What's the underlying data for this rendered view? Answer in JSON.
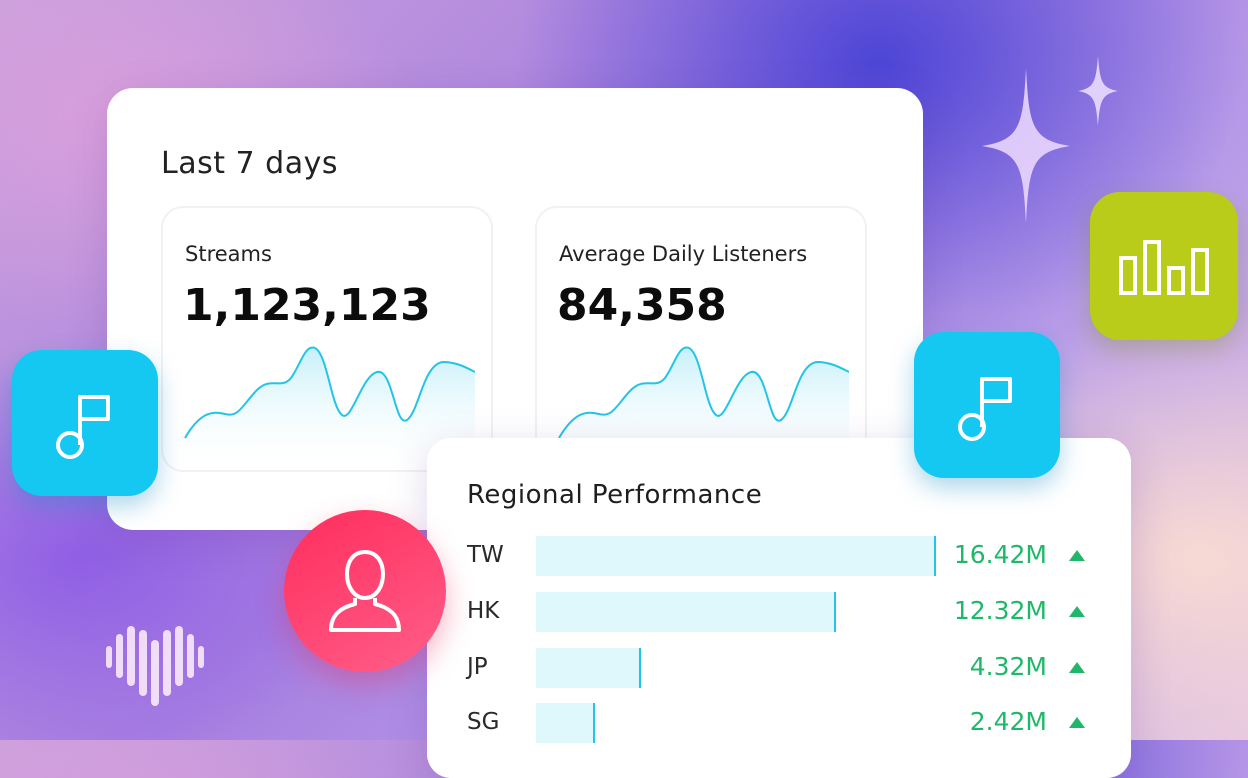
{
  "stats": {
    "title": "Last 7 days",
    "metrics": [
      {
        "label": "Streams",
        "value": "1,123,123"
      },
      {
        "label": "Average Daily Listeners",
        "value": "84,358"
      }
    ]
  },
  "regional": {
    "title": "Regional Performance",
    "rows": [
      {
        "code": "TW",
        "value": "16.42M",
        "amount": 16.42,
        "trend": "up"
      },
      {
        "code": "HK",
        "value": "12.32M",
        "amount": 12.32,
        "trend": "up"
      },
      {
        "code": "JP",
        "value": "4.32M",
        "amount": 4.32,
        "trend": "up"
      },
      {
        "code": "SG",
        "value": "2.42M",
        "amount": 2.42,
        "trend": "up"
      }
    ],
    "max_amount": 16.42
  },
  "icons": {
    "music_tile": "music-note-icon",
    "chart_tile": "bar-chart-icon",
    "user_circle": "user-icon",
    "decor": [
      "sparkle-icon",
      "heart-wave-icon"
    ]
  },
  "colors": {
    "accent_cyan": "#14c8f2",
    "accent_lime": "#b9cc1a",
    "accent_pink": "#ff2d5c",
    "trend_green": "#1fb86b",
    "spark_line": "#23c4e6"
  }
}
